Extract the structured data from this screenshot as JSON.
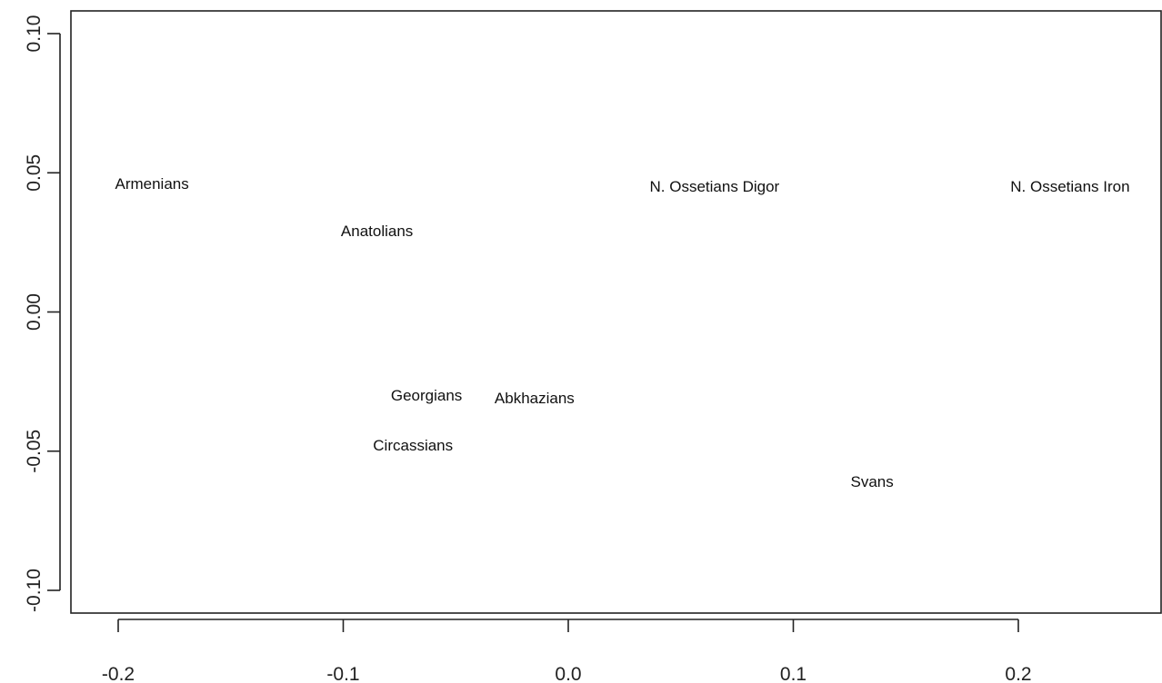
{
  "chart_data": {
    "type": "scatter",
    "title": "",
    "xlabel": "",
    "ylabel": "",
    "xlim": [
      -0.22,
      0.265
    ],
    "ylim": [
      -0.11,
      0.11
    ],
    "x_ticks": [
      "-0.2",
      "-0.1",
      "0.0",
      "0.1",
      "0.2"
    ],
    "y_ticks": [
      "-0.10",
      "-0.05",
      "0.00",
      "0.05",
      "0.10"
    ],
    "grid": false,
    "points": [
      {
        "label": "Armenians",
        "x": -0.185,
        "y": 0.046
      },
      {
        "label": "Anatolians",
        "x": -0.085,
        "y": 0.029
      },
      {
        "label": "N. Ossetians Digor",
        "x": 0.065,
        "y": 0.045
      },
      {
        "label": "N. Ossetians Iron",
        "x": 0.223,
        "y": 0.045
      },
      {
        "label": "Georgians",
        "x": -0.063,
        "y": -0.03
      },
      {
        "label": "Abkhazians",
        "x": -0.015,
        "y": -0.031
      },
      {
        "label": "Circassians",
        "x": -0.069,
        "y": -0.048
      },
      {
        "label": "Svans",
        "x": 0.135,
        "y": -0.061
      }
    ]
  }
}
